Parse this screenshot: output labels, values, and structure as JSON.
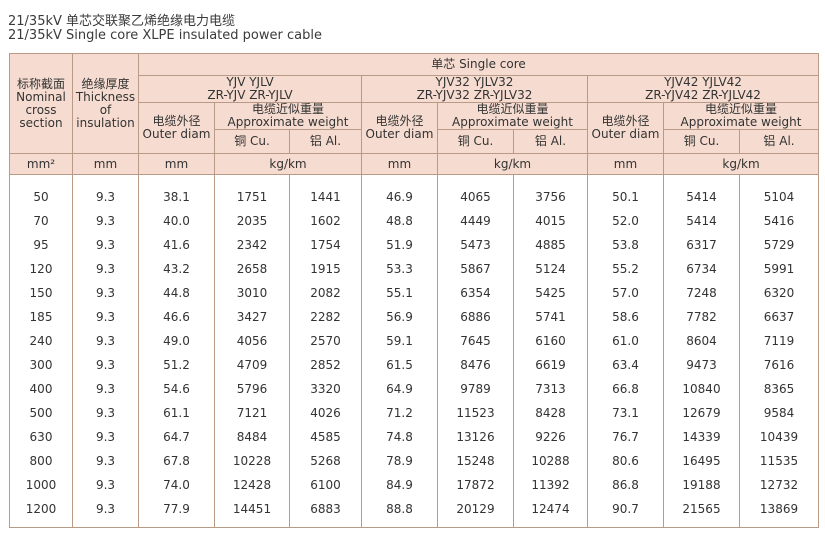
{
  "title_cn": "21/35kV 单芯交联聚乙烯绝缘电力电缆",
  "title_en": "21/35kV Single core XLPE insulated power cable",
  "header": {
    "nominal": [
      "标称截面",
      "Nominal",
      "cross",
      "section"
    ],
    "thickness": [
      "绝缘厚度",
      "Thickness",
      "of",
      "insulation"
    ],
    "single_core": "单芯 Single core",
    "groups": [
      {
        "models": [
          "YJV  YJLV",
          "ZR-YJV  ZR-YJLV"
        ]
      },
      {
        "models": [
          "YJV32  YJLV32",
          "ZR-YJV32  ZR-YJLV32"
        ]
      },
      {
        "models": [
          "YJV42  YJLV42",
          "ZR-YJV42  ZR-YJLV42"
        ]
      }
    ],
    "outer_diam": [
      "电缆外径",
      "Outer diam"
    ],
    "approx_weight": [
      "电缆近似重量",
      "Approximate weight"
    ],
    "cu": "铜 Cu.",
    "al": "铝 Al.",
    "units": {
      "section": "mm²",
      "thickness": "mm",
      "diam": "mm",
      "weight": "kg/km"
    }
  },
  "rows": [
    [
      "50",
      "9.3",
      "38.1",
      "1751",
      "1441",
      "46.9",
      "4065",
      "3756",
      "50.1",
      "5414",
      "5104"
    ],
    [
      "70",
      "9.3",
      "40.0",
      "2035",
      "1602",
      "48.8",
      "4449",
      "4015",
      "52.0",
      "5414",
      "5416"
    ],
    [
      "95",
      "9.3",
      "41.6",
      "2342",
      "1754",
      "51.9",
      "5473",
      "4885",
      "53.8",
      "6317",
      "5729"
    ],
    [
      "120",
      "9.3",
      "43.2",
      "2658",
      "1915",
      "53.3",
      "5867",
      "5124",
      "55.2",
      "6734",
      "5991"
    ],
    [
      "150",
      "9.3",
      "44.8",
      "3010",
      "2082",
      "55.1",
      "6354",
      "5425",
      "57.0",
      "7248",
      "6320"
    ],
    [
      "185",
      "9.3",
      "46.6",
      "3427",
      "2282",
      "56.9",
      "6886",
      "5741",
      "58.6",
      "7782",
      "6637"
    ],
    [
      "240",
      "9.3",
      "49.0",
      "4056",
      "2570",
      "59.1",
      "7645",
      "6160",
      "61.0",
      "8604",
      "7119"
    ],
    [
      "300",
      "9.3",
      "51.2",
      "4709",
      "2852",
      "61.5",
      "8476",
      "6619",
      "63.4",
      "9473",
      "7616"
    ],
    [
      "400",
      "9.3",
      "54.6",
      "5796",
      "3320",
      "64.9",
      "9789",
      "7313",
      "66.8",
      "10840",
      "8365"
    ],
    [
      "500",
      "9.3",
      "61.1",
      "7121",
      "4026",
      "71.2",
      "11523",
      "8428",
      "73.1",
      "12679",
      "9584"
    ],
    [
      "630",
      "9.3",
      "64.7",
      "8484",
      "4585",
      "74.8",
      "13126",
      "9226",
      "76.7",
      "14339",
      "10439"
    ],
    [
      "800",
      "9.3",
      "67.8",
      "10228",
      "5268",
      "78.9",
      "15248",
      "10288",
      "80.6",
      "16495",
      "11535"
    ],
    [
      "1000",
      "9.3",
      "74.0",
      "12428",
      "6100",
      "84.9",
      "17872",
      "11392",
      "86.8",
      "19188",
      "12732"
    ],
    [
      "1200",
      "9.3",
      "77.9",
      "14451",
      "6883",
      "88.8",
      "20129",
      "12474",
      "90.7",
      "21565",
      "13869"
    ]
  ]
}
